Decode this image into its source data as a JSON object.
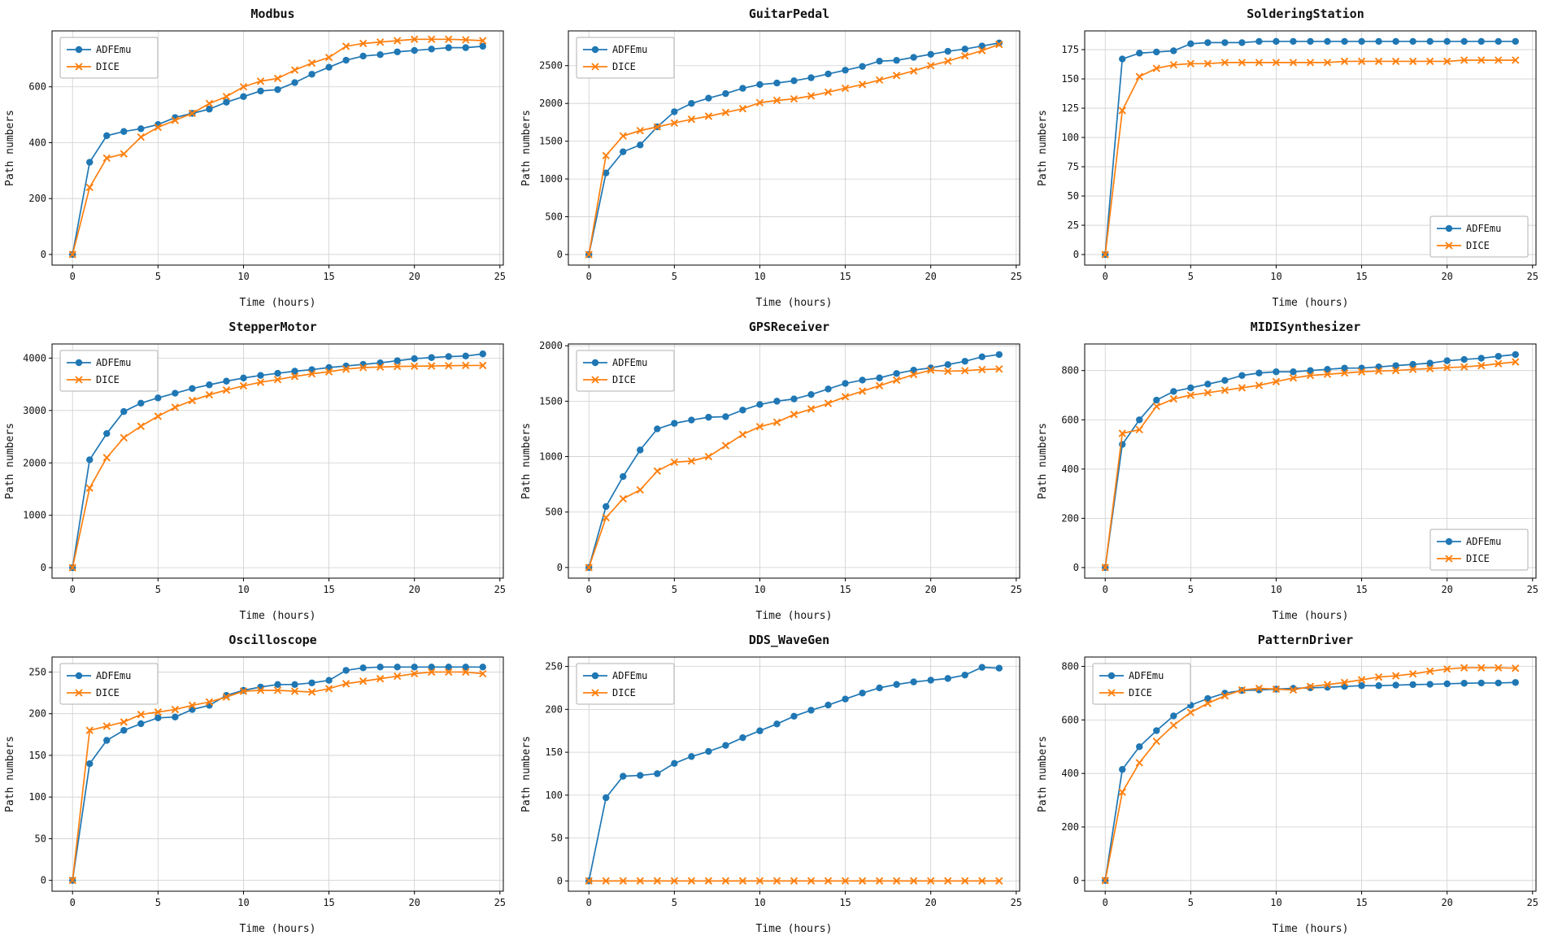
{
  "figure": {
    "xlabel": "Time (hours)",
    "ylabel": "Path numbers",
    "series_names": [
      "ADFEmu",
      "DICE"
    ],
    "colors": {
      "adfemu": "#1f77b4",
      "dice": "#ff7f0e",
      "grid": "#cfcfcf",
      "spine": "#000000"
    }
  },
  "chart_data": [
    {
      "type": "line",
      "title": "Modbus",
      "xlabel": "Time (hours)",
      "ylabel": "Path numbers",
      "x": [
        0,
        1,
        2,
        3,
        4,
        5,
        6,
        7,
        8,
        9,
        10,
        11,
        12,
        13,
        14,
        15,
        16,
        17,
        18,
        19,
        20,
        21,
        22,
        23,
        24
      ],
      "xlim": [
        -1.2,
        25.2
      ],
      "xticks": [
        0,
        5,
        10,
        15,
        20,
        25
      ],
      "ylim": [
        -38,
        800
      ],
      "yticks": [
        0,
        200,
        400,
        600
      ],
      "legend": "upper-left",
      "series": [
        {
          "name": "ADFEmu",
          "color": "#1f77b4",
          "marker": "circle",
          "values": [
            0,
            330,
            425,
            440,
            450,
            465,
            490,
            505,
            520,
            545,
            565,
            585,
            590,
            615,
            645,
            670,
            695,
            710,
            715,
            725,
            730,
            735,
            740,
            740,
            745
          ]
        },
        {
          "name": "DICE",
          "color": "#ff7f0e",
          "marker": "x",
          "values": [
            0,
            240,
            345,
            360,
            420,
            455,
            480,
            505,
            540,
            565,
            600,
            620,
            630,
            660,
            685,
            705,
            745,
            755,
            760,
            765,
            770,
            770,
            770,
            768,
            765
          ]
        }
      ]
    },
    {
      "type": "line",
      "title": "GuitarPedal",
      "xlabel": "Time (hours)",
      "ylabel": "Path numbers",
      "x": [
        0,
        1,
        2,
        3,
        4,
        5,
        6,
        7,
        8,
        9,
        10,
        11,
        12,
        13,
        14,
        15,
        16,
        17,
        18,
        19,
        20,
        21,
        22,
        23,
        24
      ],
      "xlim": [
        -1.2,
        25.2
      ],
      "xticks": [
        0,
        5,
        10,
        15,
        20,
        25
      ],
      "ylim": [
        -140,
        2960
      ],
      "yticks": [
        0,
        500,
        1000,
        1500,
        2000,
        2500
      ],
      "legend": "upper-left",
      "series": [
        {
          "name": "ADFEmu",
          "color": "#1f77b4",
          "marker": "circle",
          "values": [
            0,
            1080,
            1360,
            1450,
            1690,
            1890,
            2000,
            2070,
            2130,
            2200,
            2250,
            2270,
            2300,
            2340,
            2390,
            2440,
            2490,
            2560,
            2570,
            2610,
            2650,
            2690,
            2720,
            2760,
            2800
          ]
        },
        {
          "name": "DICE",
          "color": "#ff7f0e",
          "marker": "x",
          "values": [
            0,
            1310,
            1570,
            1640,
            1690,
            1740,
            1790,
            1830,
            1880,
            1930,
            2010,
            2040,
            2060,
            2100,
            2150,
            2200,
            2250,
            2310,
            2370,
            2430,
            2500,
            2560,
            2630,
            2700,
            2780
          ]
        }
      ]
    },
    {
      "type": "line",
      "title": "SolderingStation",
      "xlabel": "Time (hours)",
      "ylabel": "Path numbers",
      "x": [
        0,
        1,
        2,
        3,
        4,
        5,
        6,
        7,
        8,
        9,
        10,
        11,
        12,
        13,
        14,
        15,
        16,
        17,
        18,
        19,
        20,
        21,
        22,
        23,
        24
      ],
      "xlim": [
        -1.2,
        25.2
      ],
      "xticks": [
        0,
        5,
        10,
        15,
        20,
        25
      ],
      "ylim": [
        -9,
        191
      ],
      "yticks": [
        0,
        25,
        50,
        75,
        100,
        125,
        150,
        175
      ],
      "legend": "lower-right",
      "series": [
        {
          "name": "ADFEmu",
          "color": "#1f77b4",
          "marker": "circle",
          "values": [
            0,
            167,
            172,
            173,
            174,
            180,
            181,
            181,
            181,
            182,
            182,
            182,
            182,
            182,
            182,
            182,
            182,
            182,
            182,
            182,
            182,
            182,
            182,
            182,
            182
          ]
        },
        {
          "name": "DICE",
          "color": "#ff7f0e",
          "marker": "x",
          "values": [
            0,
            123,
            152,
            159,
            162,
            163,
            163,
            164,
            164,
            164,
            164,
            164,
            164,
            164,
            165,
            165,
            165,
            165,
            165,
            165,
            165,
            166,
            166,
            166,
            166
          ]
        }
      ]
    },
    {
      "type": "line",
      "title": "StepperMotor",
      "xlabel": "Time (hours)",
      "ylabel": "Path numbers",
      "x": [
        0,
        1,
        2,
        3,
        4,
        5,
        6,
        7,
        8,
        9,
        10,
        11,
        12,
        13,
        14,
        15,
        16,
        17,
        18,
        19,
        20,
        21,
        22,
        23,
        24
      ],
      "xlim": [
        -1.2,
        25.2
      ],
      "xticks": [
        0,
        5,
        10,
        15,
        20,
        25
      ],
      "ylim": [
        -200,
        4270
      ],
      "yticks": [
        0,
        1000,
        2000,
        3000,
        4000
      ],
      "legend": "upper-left",
      "series": [
        {
          "name": "ADFEmu",
          "color": "#1f77b4",
          "marker": "circle",
          "values": [
            0,
            2060,
            2560,
            2980,
            3140,
            3240,
            3330,
            3420,
            3490,
            3560,
            3620,
            3670,
            3710,
            3750,
            3780,
            3820,
            3850,
            3880,
            3910,
            3950,
            3990,
            4010,
            4030,
            4040,
            4080
          ]
        },
        {
          "name": "DICE",
          "color": "#ff7f0e",
          "marker": "x",
          "values": [
            0,
            1520,
            2100,
            2480,
            2700,
            2890,
            3060,
            3190,
            3300,
            3390,
            3470,
            3540,
            3590,
            3650,
            3700,
            3740,
            3790,
            3820,
            3830,
            3840,
            3845,
            3850,
            3855,
            3860,
            3860
          ]
        }
      ]
    },
    {
      "type": "line",
      "title": "GPSReceiver",
      "xlabel": "Time (hours)",
      "ylabel": "Path numbers",
      "x": [
        0,
        1,
        2,
        3,
        4,
        5,
        6,
        7,
        8,
        9,
        10,
        11,
        12,
        13,
        14,
        15,
        16,
        17,
        18,
        19,
        20,
        21,
        22,
        23,
        24
      ],
      "xlim": [
        -1.2,
        25.2
      ],
      "xticks": [
        0,
        5,
        10,
        15,
        20,
        25
      ],
      "ylim": [
        -96,
        2016
      ],
      "yticks": [
        0,
        500,
        1000,
        1500,
        2000
      ],
      "legend": "upper-left",
      "series": [
        {
          "name": "ADFEmu",
          "color": "#1f77b4",
          "marker": "circle",
          "values": [
            0,
            550,
            820,
            1060,
            1250,
            1300,
            1330,
            1355,
            1360,
            1420,
            1470,
            1500,
            1520,
            1560,
            1610,
            1660,
            1690,
            1710,
            1750,
            1780,
            1800,
            1830,
            1860,
            1900,
            1920
          ]
        },
        {
          "name": "DICE",
          "color": "#ff7f0e",
          "marker": "x",
          "values": [
            0,
            450,
            620,
            700,
            870,
            950,
            960,
            1000,
            1100,
            1200,
            1270,
            1310,
            1380,
            1430,
            1480,
            1540,
            1590,
            1640,
            1690,
            1740,
            1780,
            1770,
            1775,
            1785,
            1790
          ]
        }
      ]
    },
    {
      "type": "line",
      "title": "MIDISynthesizer",
      "xlabel": "Time (hours)",
      "ylabel": "Path numbers",
      "x": [
        0,
        1,
        2,
        3,
        4,
        5,
        6,
        7,
        8,
        9,
        10,
        11,
        12,
        13,
        14,
        15,
        16,
        17,
        18,
        19,
        20,
        21,
        22,
        23,
        24
      ],
      "xlim": [
        -1.2,
        25.2
      ],
      "xticks": [
        0,
        5,
        10,
        15,
        20,
        25
      ],
      "ylim": [
        -43,
        908
      ],
      "yticks": [
        0,
        200,
        400,
        600,
        800
      ],
      "legend": "lower-right",
      "series": [
        {
          "name": "ADFEmu",
          "color": "#1f77b4",
          "marker": "circle",
          "values": [
            0,
            500,
            600,
            680,
            715,
            730,
            745,
            760,
            780,
            790,
            795,
            795,
            800,
            805,
            810,
            810,
            815,
            820,
            825,
            830,
            840,
            845,
            850,
            858,
            865
          ]
        },
        {
          "name": "DICE",
          "color": "#ff7f0e",
          "marker": "x",
          "values": [
            0,
            545,
            560,
            655,
            685,
            700,
            710,
            720,
            730,
            740,
            755,
            770,
            780,
            785,
            790,
            795,
            798,
            800,
            805,
            808,
            812,
            815,
            820,
            828,
            835
          ]
        }
      ]
    },
    {
      "type": "line",
      "title": "Oscilloscope",
      "xlabel": "Time (hours)",
      "ylabel": "Path numbers",
      "x": [
        0,
        1,
        2,
        3,
        4,
        5,
        6,
        7,
        8,
        9,
        10,
        11,
        12,
        13,
        14,
        15,
        16,
        17,
        18,
        19,
        20,
        21,
        22,
        23,
        24
      ],
      "xlim": [
        -1.2,
        25.2
      ],
      "xticks": [
        0,
        5,
        10,
        15,
        20,
        25
      ],
      "ylim": [
        -13,
        268
      ],
      "yticks": [
        0,
        50,
        100,
        150,
        200,
        250
      ],
      "legend": "upper-left",
      "series": [
        {
          "name": "ADFEmu",
          "color": "#1f77b4",
          "marker": "circle",
          "values": [
            0,
            140,
            168,
            180,
            188,
            195,
            196,
            205,
            210,
            222,
            228,
            232,
            235,
            235,
            237,
            240,
            252,
            255,
            256,
            256,
            256,
            256,
            256,
            256,
            256
          ]
        },
        {
          "name": "DICE",
          "color": "#ff7f0e",
          "marker": "x",
          "values": [
            0,
            180,
            185,
            190,
            199,
            202,
            205,
            210,
            214,
            220,
            227,
            228,
            228,
            227,
            226,
            230,
            236,
            239,
            242,
            245,
            248,
            250,
            250,
            250,
            248
          ]
        }
      ]
    },
    {
      "type": "line",
      "title": "DDS_WaveGen",
      "xlabel": "Time (hours)",
      "ylabel": "Path numbers",
      "x": [
        0,
        1,
        2,
        3,
        4,
        5,
        6,
        7,
        8,
        9,
        10,
        11,
        12,
        13,
        14,
        15,
        16,
        17,
        18,
        19,
        20,
        21,
        22,
        23,
        24
      ],
      "xlim": [
        -1.2,
        25.2
      ],
      "xticks": [
        0,
        5,
        10,
        15,
        20,
        25
      ],
      "ylim": [
        -12,
        261
      ],
      "yticks": [
        0,
        50,
        100,
        150,
        200,
        250
      ],
      "legend": "upper-left",
      "series": [
        {
          "name": "ADFEmu",
          "color": "#1f77b4",
          "marker": "circle",
          "values": [
            0,
            97,
            122,
            123,
            125,
            137,
            145,
            151,
            158,
            167,
            175,
            183,
            192,
            199,
            205,
            212,
            219,
            225,
            229,
            232,
            234,
            236,
            240,
            249,
            248
          ]
        },
        {
          "name": "DICE",
          "color": "#ff7f0e",
          "marker": "x",
          "values": [
            0,
            0,
            0,
            0,
            0,
            0,
            0,
            0,
            0,
            0,
            0,
            0,
            0,
            0,
            0,
            0,
            0,
            0,
            0,
            0,
            0,
            0,
            0,
            0,
            0
          ]
        }
      ]
    },
    {
      "type": "line",
      "title": "PatternDriver",
      "xlabel": "Time (hours)",
      "ylabel": "Path numbers",
      "x": [
        0,
        1,
        2,
        3,
        4,
        5,
        6,
        7,
        8,
        9,
        10,
        11,
        12,
        13,
        14,
        15,
        16,
        17,
        18,
        19,
        20,
        21,
        22,
        23,
        24
      ],
      "xlim": [
        -1.2,
        25.2
      ],
      "xticks": [
        0,
        5,
        10,
        15,
        20,
        25
      ],
      "ylim": [
        -40,
        835
      ],
      "yticks": [
        0,
        200,
        400,
        600,
        800
      ],
      "legend": "upper-left",
      "series": [
        {
          "name": "ADFEmu",
          "color": "#1f77b4",
          "marker": "circle",
          "values": [
            0,
            415,
            500,
            560,
            615,
            655,
            680,
            700,
            710,
            712,
            715,
            718,
            720,
            722,
            725,
            728,
            728,
            730,
            732,
            733,
            735,
            737,
            738,
            738,
            740
          ]
        },
        {
          "name": "DICE",
          "color": "#ff7f0e",
          "marker": "x",
          "values": [
            0,
            330,
            440,
            520,
            580,
            628,
            662,
            690,
            712,
            718,
            715,
            712,
            725,
            732,
            740,
            750,
            760,
            765,
            772,
            782,
            790,
            795,
            795,
            795,
            793
          ]
        }
      ]
    }
  ]
}
